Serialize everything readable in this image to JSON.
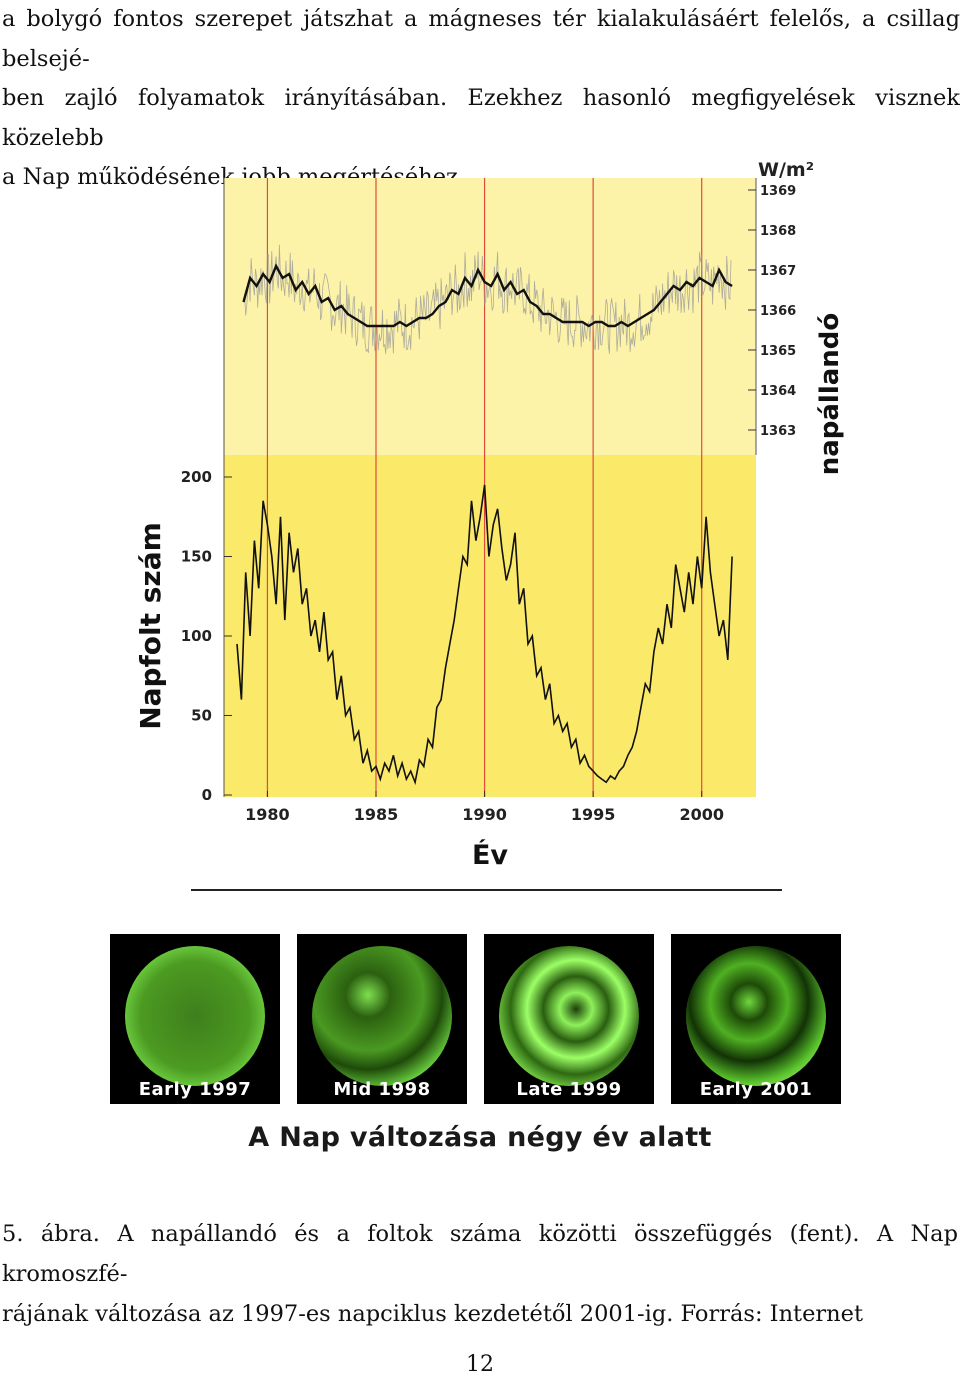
{
  "paragraph": {
    "lines": [
      "a bolygó fontos szerepet játszhat a mágneses tér kialakulásáért felelős, a csillag belsejé-",
      "ben zajló folyamatok irányításában. Ezekhez hasonló megfigyelések visznek közelebb",
      "a Nap működésének jobb megértéséhez."
    ]
  },
  "chart_data": {
    "type": "line",
    "xlabel": "Év",
    "x_ticks": [
      "1980",
      "1985",
      "1990",
      "1995",
      "2000"
    ],
    "xlim": [
      1978,
      2002.5
    ],
    "series": [
      {
        "name": "napállandó",
        "unit_label": "W/m²",
        "y_ticks": [
          "1363",
          "1364",
          "1365",
          "1366",
          "1367",
          "1368",
          "1369"
        ],
        "ylim": [
          1363,
          1369
        ],
        "x": [
          1978.9,
          1979.2,
          1979.5,
          1979.8,
          1980.1,
          1980.4,
          1980.7,
          1981.0,
          1981.3,
          1981.6,
          1981.9,
          1982.2,
          1982.5,
          1982.8,
          1983.1,
          1983.4,
          1983.7,
          1984.0,
          1984.3,
          1984.6,
          1984.9,
          1985.2,
          1985.5,
          1985.8,
          1986.1,
          1986.4,
          1986.7,
          1987.0,
          1987.3,
          1987.6,
          1987.9,
          1988.2,
          1988.5,
          1988.8,
          1989.1,
          1989.4,
          1989.7,
          1990.0,
          1990.3,
          1990.6,
          1990.9,
          1991.2,
          1991.5,
          1991.8,
          1992.1,
          1992.4,
          1992.7,
          1993.0,
          1993.3,
          1993.6,
          1993.9,
          1994.2,
          1994.5,
          1994.8,
          1995.1,
          1995.4,
          1995.7,
          1996.0,
          1996.3,
          1996.6,
          1996.9,
          1997.2,
          1997.5,
          1997.8,
          1998.1,
          1998.4,
          1998.7,
          1999.0,
          1999.3,
          1999.6,
          1999.9,
          2000.2,
          2000.5,
          2000.8,
          2001.1,
          2001.4
        ],
        "values": [
          1366.2,
          1366.8,
          1366.6,
          1366.9,
          1366.7,
          1367.1,
          1366.8,
          1366.9,
          1366.5,
          1366.7,
          1366.4,
          1366.6,
          1366.2,
          1366.3,
          1366.0,
          1366.1,
          1365.9,
          1365.8,
          1365.7,
          1365.6,
          1365.6,
          1365.6,
          1365.6,
          1365.6,
          1365.7,
          1365.6,
          1365.7,
          1365.8,
          1365.8,
          1365.9,
          1366.1,
          1366.2,
          1366.5,
          1366.4,
          1366.8,
          1366.6,
          1367.0,
          1366.7,
          1366.6,
          1366.9,
          1366.5,
          1366.7,
          1366.4,
          1366.5,
          1366.2,
          1366.1,
          1365.9,
          1365.9,
          1365.8,
          1365.7,
          1365.7,
          1365.7,
          1365.7,
          1365.6,
          1365.7,
          1365.7,
          1365.6,
          1365.6,
          1365.7,
          1365.6,
          1365.7,
          1365.8,
          1365.9,
          1366.0,
          1366.2,
          1366.4,
          1366.6,
          1366.5,
          1366.7,
          1366.6,
          1366.8,
          1366.7,
          1366.6,
          1367.0,
          1366.7,
          1366.6
        ]
      },
      {
        "name": "Napfolt szám",
        "y_ticks": [
          "0",
          "50",
          "100",
          "150",
          "200"
        ],
        "ylim": [
          0,
          200
        ],
        "x": [
          1978.6,
          1978.8,
          1979.0,
          1979.2,
          1979.4,
          1979.6,
          1979.8,
          1980.0,
          1980.2,
          1980.4,
          1980.6,
          1980.8,
          1981.0,
          1981.2,
          1981.4,
          1981.6,
          1981.8,
          1982.0,
          1982.2,
          1982.4,
          1982.6,
          1982.8,
          1983.0,
          1983.2,
          1983.4,
          1983.6,
          1983.8,
          1984.0,
          1984.2,
          1984.4,
          1984.6,
          1984.8,
          1985.0,
          1985.2,
          1985.4,
          1985.6,
          1985.8,
          1986.0,
          1986.2,
          1986.4,
          1986.6,
          1986.8,
          1987.0,
          1987.2,
          1987.4,
          1987.6,
          1987.8,
          1988.0,
          1988.2,
          1988.4,
          1988.6,
          1988.8,
          1989.0,
          1989.2,
          1989.4,
          1989.6,
          1989.8,
          1990.0,
          1990.2,
          1990.4,
          1990.6,
          1990.8,
          1991.0,
          1991.2,
          1991.4,
          1991.6,
          1991.8,
          1992.0,
          1992.2,
          1992.4,
          1992.6,
          1992.8,
          1993.0,
          1993.2,
          1993.4,
          1993.6,
          1993.8,
          1994.0,
          1994.2,
          1994.4,
          1994.6,
          1994.8,
          1995.0,
          1995.2,
          1995.4,
          1995.6,
          1995.8,
          1996.0,
          1996.2,
          1996.4,
          1996.6,
          1996.8,
          1997.0,
          1997.2,
          1997.4,
          1997.6,
          1997.8,
          1998.0,
          1998.2,
          1998.4,
          1998.6,
          1998.8,
          1999.0,
          1999.2,
          1999.4,
          1999.6,
          1999.8,
          2000.0,
          2000.2,
          2000.4,
          2000.6,
          2000.8,
          2001.0,
          2001.2,
          2001.4
        ],
        "values": [
          95,
          60,
          140,
          100,
          160,
          130,
          185,
          170,
          150,
          120,
          175,
          110,
          165,
          140,
          155,
          120,
          130,
          100,
          110,
          90,
          115,
          85,
          90,
          60,
          75,
          50,
          55,
          35,
          40,
          20,
          28,
          15,
          18,
          10,
          20,
          15,
          25,
          12,
          20,
          10,
          15,
          8,
          22,
          18,
          35,
          30,
          55,
          60,
          80,
          95,
          110,
          130,
          150,
          145,
          185,
          160,
          175,
          195,
          150,
          170,
          180,
          155,
          135,
          145,
          165,
          120,
          130,
          95,
          100,
          75,
          80,
          60,
          70,
          45,
          50,
          40,
          45,
          30,
          35,
          20,
          25,
          18,
          15,
          12,
          10,
          8,
          12,
          10,
          15,
          18,
          25,
          30,
          40,
          55,
          70,
          65,
          90,
          105,
          95,
          120,
          105,
          145,
          130,
          115,
          140,
          120,
          150,
          130,
          175,
          140,
          120,
          100,
          110,
          85,
          150
        ]
      }
    ]
  },
  "colors": {
    "top_panel": "#fdf3a8",
    "bottom_panel": "#fbe96a",
    "cycle_lines": "#e04a3a",
    "sun_green": "#5fd640"
  },
  "sun_images": [
    {
      "label": "Early 1997",
      "icon": "sun-chromosphere-image"
    },
    {
      "label": "Mid 1998",
      "icon": "sun-chromosphere-image"
    },
    {
      "label": "Late 1999",
      "icon": "sun-chromosphere-image"
    },
    {
      "label": "Early 2001",
      "icon": "sun-chromosphere-image"
    }
  ],
  "sun_caption": "A Nap változása négy év alatt",
  "caption": {
    "lines": [
      "5. ábra. A napállandó és a foltok száma közötti összefüggés (fent). A Nap kromoszfé-",
      "rájának változása az 1997-es napciklus kezdetétől 2001-ig. Forrás: Internet"
    ]
  },
  "page_number": "12"
}
